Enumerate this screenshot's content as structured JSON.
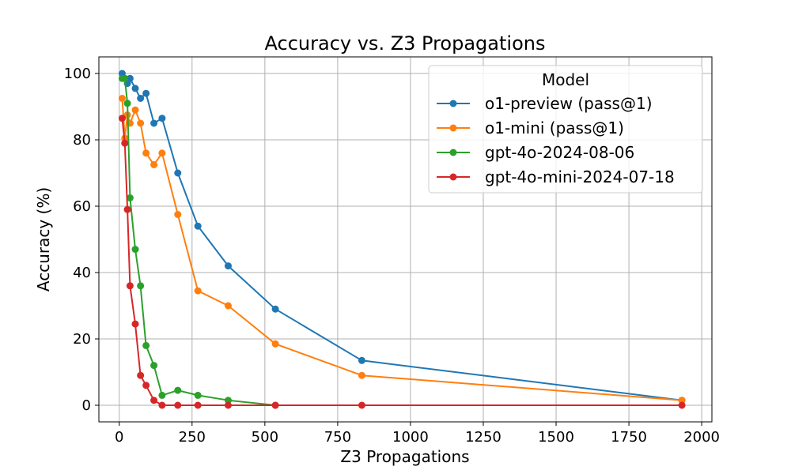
{
  "chart_data": {
    "type": "line",
    "title": "Accuracy vs. Z3 Propagations",
    "xlabel": "Z3 Propagations",
    "ylabel": "Accuracy (%)",
    "xlim": [
      -70,
      2035
    ],
    "ylim": [
      -5,
      105
    ],
    "xticks": [
      0,
      250,
      500,
      750,
      1000,
      1250,
      1500,
      1750,
      2000
    ],
    "yticks": [
      0,
      20,
      40,
      60,
      80,
      100
    ],
    "grid": true,
    "legend": {
      "title": "Model",
      "placement": "top-right"
    },
    "series": [
      {
        "name": "o1-preview (pass@1)",
        "color": "#1f77b4",
        "x": [
          10,
          19,
          28,
          37,
          55,
          73,
          92,
          119,
          147,
          201,
          270,
          374,
          536,
          833,
          1932
        ],
        "y": [
          100,
          98.5,
          97,
          98.5,
          95.5,
          92.5,
          94,
          85,
          86.5,
          70,
          54,
          42,
          29,
          13.5,
          1.5
        ]
      },
      {
        "name": "o1-mini (pass@1)",
        "color": "#ff7f0e",
        "x": [
          10,
          19,
          28,
          37,
          55,
          73,
          92,
          119,
          147,
          201,
          270,
          374,
          536,
          833,
          1932
        ],
        "y": [
          92.5,
          80.5,
          87.5,
          85,
          89,
          85,
          76,
          72.5,
          76,
          57.5,
          34.5,
          30,
          18.5,
          9,
          1.5
        ]
      },
      {
        "name": "gpt-4o-2024-08-06",
        "color": "#2ca02c",
        "x": [
          10,
          19,
          28,
          37,
          55,
          73,
          92,
          119,
          147,
          201,
          270,
          374,
          536
        ],
        "y": [
          98.5,
          98.5,
          91,
          62.5,
          47,
          36,
          18,
          12,
          3,
          4.5,
          3,
          1.5,
          0
        ]
      },
      {
        "name": "gpt-4o-mini-2024-07-18",
        "color": "#d62728",
        "x": [
          10,
          19,
          28,
          37,
          55,
          73,
          92,
          119,
          147,
          201,
          270,
          374,
          536,
          833,
          1932
        ],
        "y": [
          86.5,
          79,
          59,
          36,
          24.5,
          9,
          6,
          1.5,
          0,
          0,
          0,
          0,
          0,
          0,
          0
        ]
      }
    ]
  }
}
